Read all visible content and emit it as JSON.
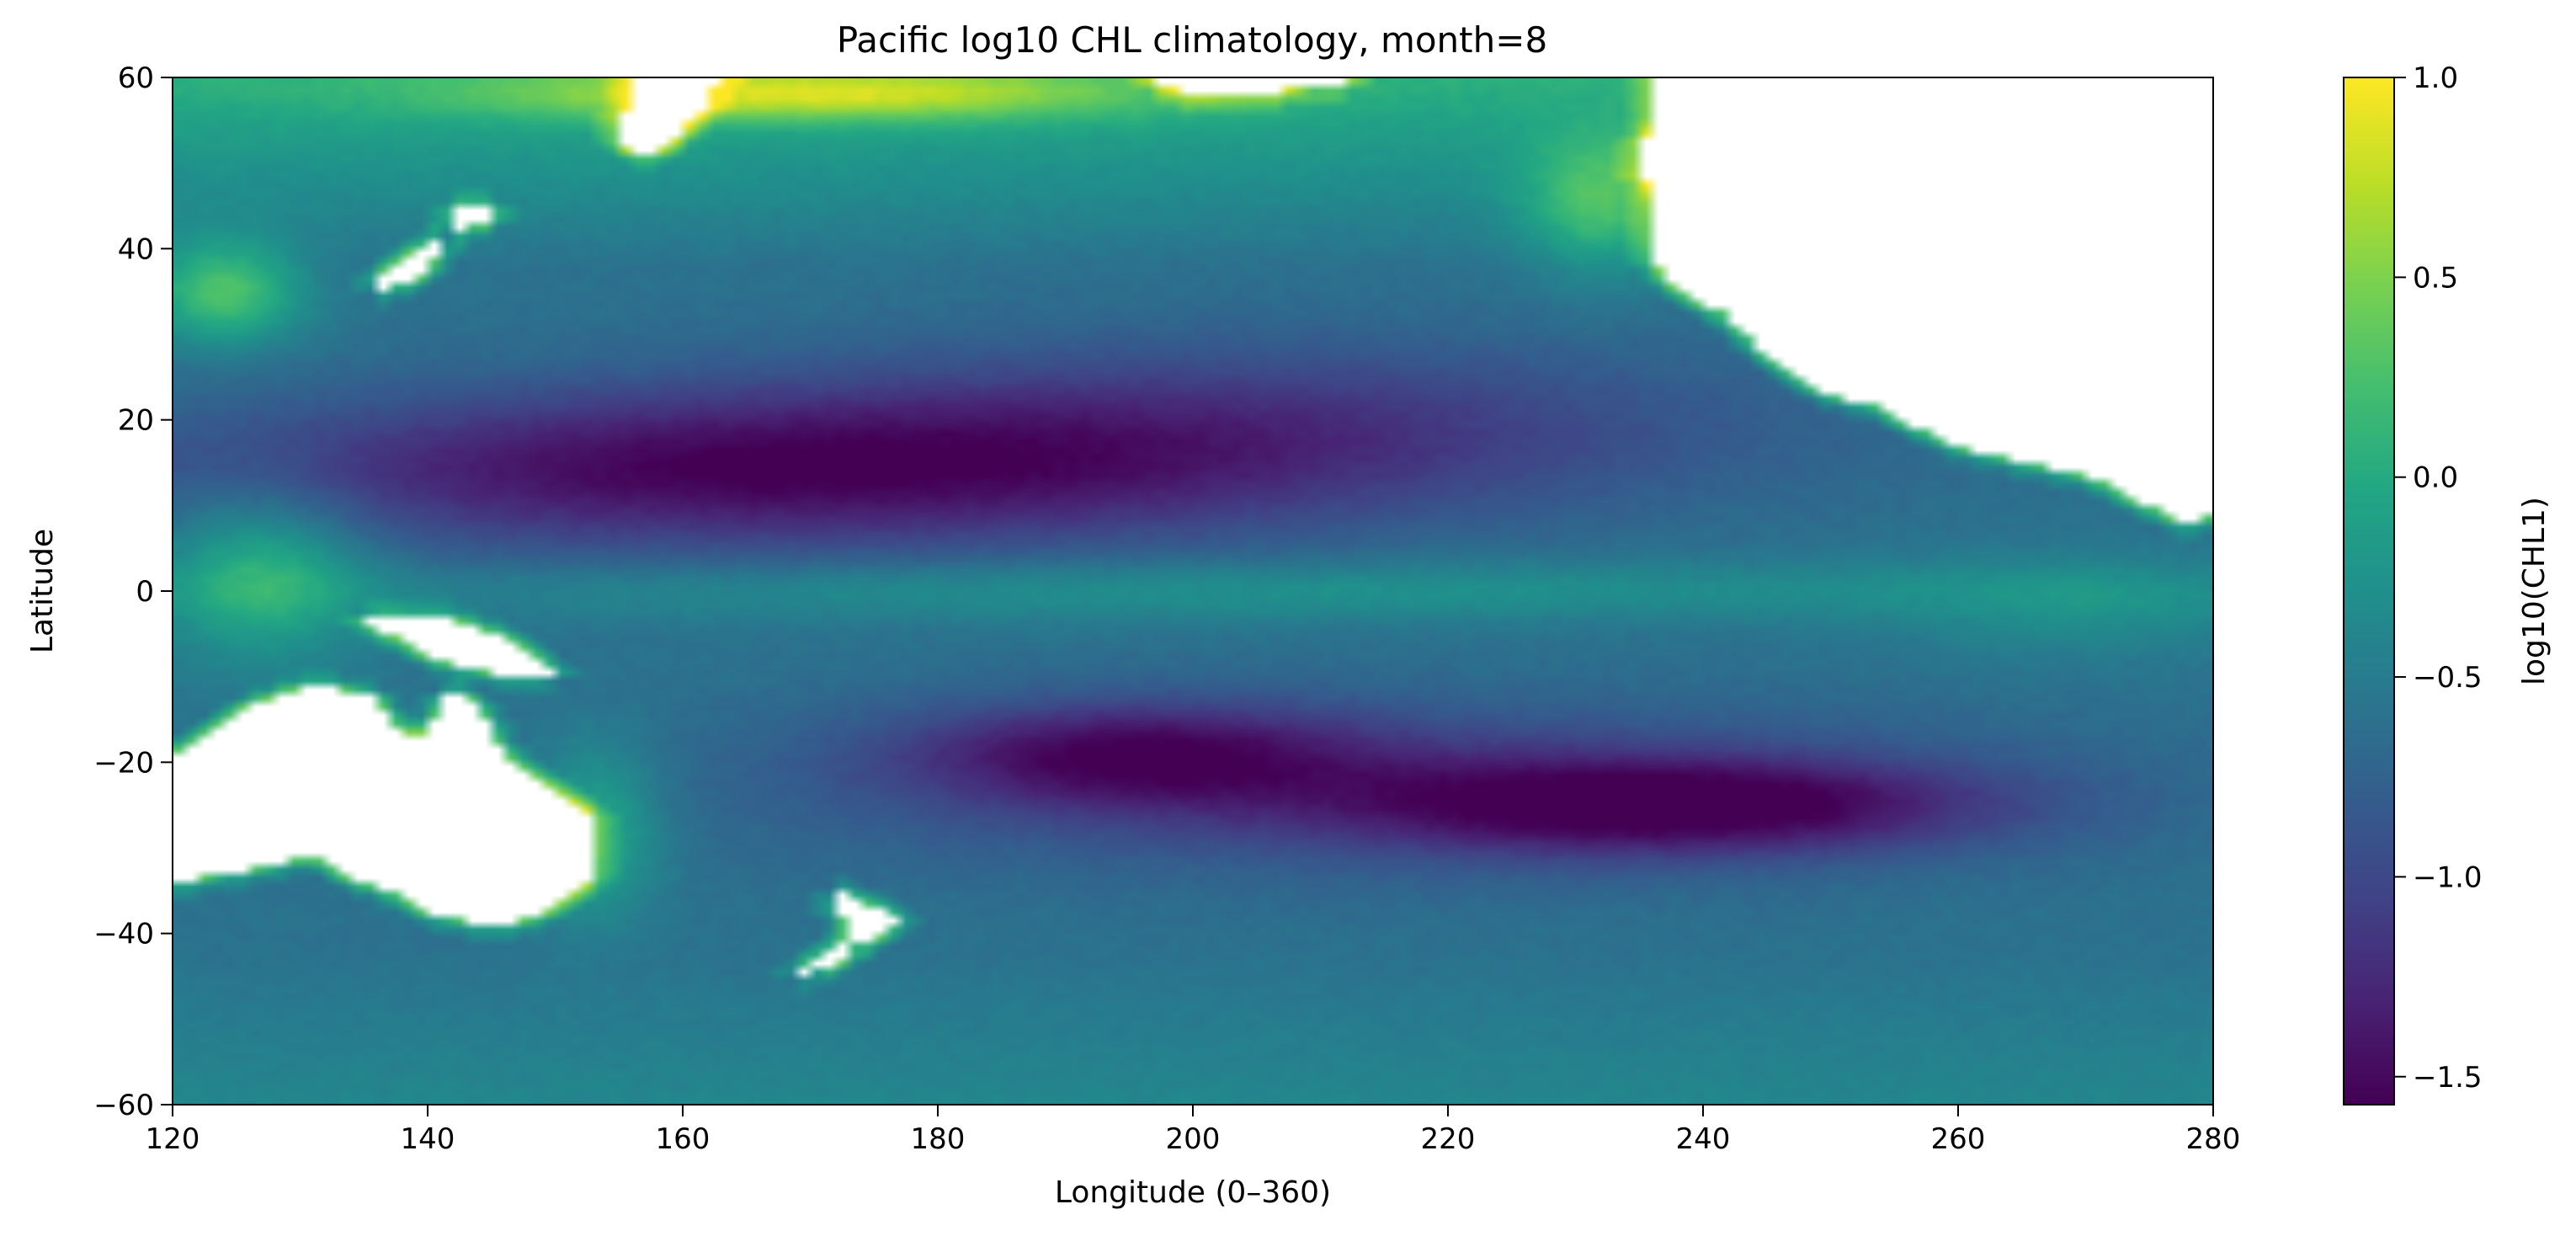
{
  "chart_data": {
    "type": "heatmap",
    "title": "Pacific log10 CHL climatology, month=8",
    "xlabel": "Longitude (0–360)",
    "ylabel": "Latitude",
    "xlim": [
      120,
      280
    ],
    "ylim": [
      -60,
      60
    ],
    "xticks": [
      120,
      140,
      160,
      180,
      200,
      220,
      240,
      260,
      280
    ],
    "xtick_labels": [
      "120",
      "140",
      "160",
      "180",
      "200",
      "220",
      "240",
      "260",
      "280"
    ],
    "yticks": [
      -60,
      -40,
      -20,
      0,
      20,
      40,
      60
    ],
    "ytick_labels": [
      "−60",
      "−40",
      "−20",
      "0",
      "20",
      "40",
      "60"
    ],
    "grid": false,
    "colormap": "viridis",
    "colorbar": {
      "label": "log10(CHL1)",
      "vmin": -1.57,
      "vmax": 1.0,
      "ticks": [
        1.0,
        0.5,
        0.0,
        -0.5,
        -1.0,
        -1.5
      ],
      "tick_labels": [
        "1.0",
        "0.5",
        "0.0",
        "−0.5",
        "−1.0",
        "−1.5"
      ]
    },
    "grid_resolution_deg": 1,
    "field_description": "Values read from colour: oligotrophic gyres around -1.5 (N Pacific 8-25N, S Pacific gyre near -25S/240E), equatorial band about -0.8, open ocean -1.0 to -0.5, coasts and high latitudes -0.3 to 1.0; white cells are land (missing data)."
  }
}
